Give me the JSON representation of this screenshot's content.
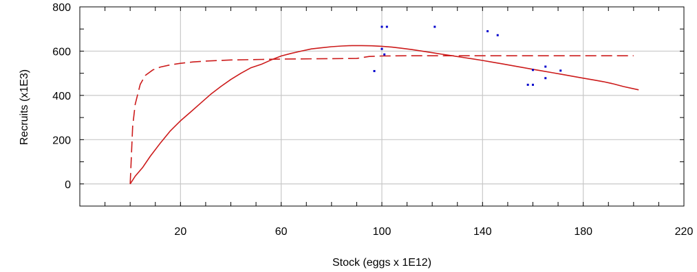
{
  "chart_data": {
    "type": "line",
    "xlabel": "Stock (eggs x 1E12)",
    "ylabel": "Recruits (x1E3)",
    "xlim": [
      -20,
      220
    ],
    "ylim": [
      -100,
      800
    ],
    "x_ticks": [
      20,
      60,
      100,
      140,
      180,
      220
    ],
    "x_tick_labels": [
      "20",
      "60",
      "100",
      "140",
      "180",
      "220"
    ],
    "y_ticks": [
      0,
      200,
      400,
      600,
      800
    ],
    "y_tick_labels": [
      "0",
      "200",
      "400",
      "600",
      "800"
    ],
    "grid": true,
    "legend": "none",
    "colors": {
      "solid_curve": "#cc1a1a",
      "dashed_curve": "#cc1a1a",
      "observations": "#0000cc"
    },
    "series": [
      {
        "style": "solid",
        "x": [
          0,
          2,
          5,
          8,
          12,
          16,
          20,
          24,
          28,
          32,
          36,
          40,
          44,
          48,
          52,
          56,
          60,
          64,
          68,
          72,
          76,
          80,
          84,
          88,
          92,
          96,
          100,
          104,
          108,
          112,
          116,
          120,
          124,
          128,
          132,
          136,
          140,
          144,
          148,
          152,
          156,
          160,
          164,
          168,
          172,
          176,
          180,
          184,
          188,
          192,
          196,
          202
        ],
        "y": [
          0,
          35,
          75,
          125,
          185,
          240,
          285,
          325,
          365,
          405,
          440,
          472,
          500,
          525,
          540,
          560,
          578,
          590,
          600,
          610,
          615,
          620,
          623,
          625,
          625,
          624,
          622,
          618,
          613,
          607,
          600,
          593,
          586,
          579,
          572,
          565,
          558,
          550,
          542,
          534,
          526,
          518,
          510,
          502,
          494,
          486,
          478,
          470,
          462,
          452,
          440,
          425
        ]
      },
      {
        "style": "dashed",
        "x": [
          0,
          0.5,
          1,
          2,
          4,
          6,
          9,
          12,
          16,
          20,
          25,
          30,
          40,
          50,
          60,
          70,
          80,
          90,
          95,
          100,
          110,
          120,
          140,
          160,
          180,
          200
        ],
        "y": [
          0,
          130,
          260,
          360,
          450,
          490,
          515,
          528,
          538,
          545,
          551,
          555,
          560,
          562,
          564,
          565,
          566,
          567,
          576,
          578,
          579,
          579,
          579,
          579,
          579,
          579
        ]
      }
    ],
    "observations": {
      "x": [
        97,
        100,
        100,
        101,
        102,
        121,
        142,
        146,
        158,
        160,
        160,
        165,
        165,
        171
      ],
      "y": [
        510,
        610,
        710,
        585,
        710,
        710,
        690,
        672,
        448,
        448,
        515,
        478,
        530,
        512
      ]
    }
  }
}
